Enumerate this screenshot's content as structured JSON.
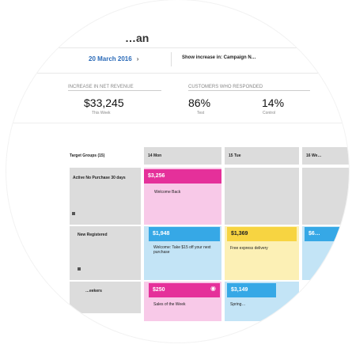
{
  "header": {
    "title_partial": "…an",
    "date_range": "20 March 2016",
    "date_arrow": "›",
    "show_increase": "Show increase in: Campaign N…"
  },
  "metrics": [
    {
      "label": "INCREASE IN NET REVENUE",
      "value": "$33,245",
      "sub": "This Week"
    },
    {
      "label": "CUSTOMERS WHO RESPONDED",
      "value": "86%",
      "sub": "Test"
    },
    {
      "label": "",
      "value": "14%",
      "sub": "Control"
    }
  ],
  "grid": {
    "target_groups_label": "Target Groups (15)",
    "days": [
      "14 Mon",
      "15 Tue",
      "16 We…"
    ],
    "rows": [
      {
        "label": "Active No Purchase 30 days",
        "cells": [
          {
            "amount": "$3,256",
            "text": "Welcome Back"
          }
        ]
      },
      {
        "label": "New Registered",
        "cells": [
          {
            "amount": "$1,948",
            "text": "Welcome: Take $15 off your next purchase"
          },
          {
            "amount": "$1,369",
            "text": "Free express delivery"
          },
          {
            "amount": "$6…",
            "text": ""
          }
        ]
      },
      {
        "label": "…eekers",
        "cells": [
          {
            "amount": "$250",
            "text": "Sales of the Week"
          },
          {
            "amount": "$3,149",
            "text": "Spring…"
          }
        ]
      }
    ]
  },
  "colors": {
    "accent_blue": "#2a6ab8",
    "magenta": "#e5309a",
    "pink_bg": "#f8c9e8",
    "blue": "#36a8e6",
    "blue_bg": "#c3e4f6",
    "yellow": "#f7d441",
    "yellow_bg": "#fcf0b5",
    "gray": "#dcdcdc"
  }
}
